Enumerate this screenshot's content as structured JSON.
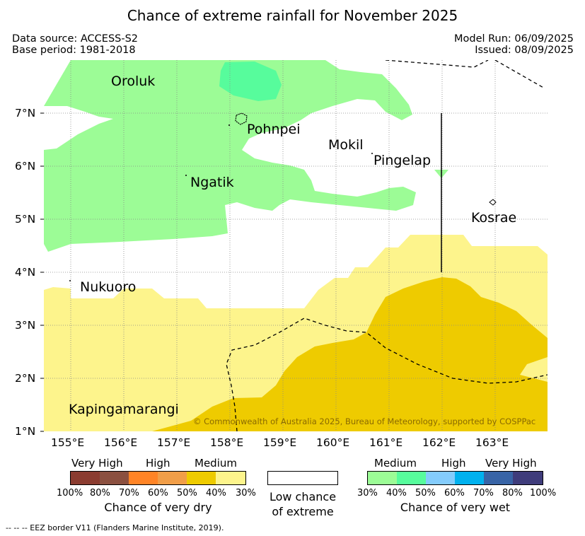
{
  "title": "Chance of extreme rainfall for November 2025",
  "meta": {
    "data_source": "Data source: ACCESS-S2",
    "base_period": "Base period: 1981-2018",
    "model_run": "Model Run: 06/09/2025",
    "issued": "Issued: 08/09/2025"
  },
  "places": [
    {
      "name": "Oroluk"
    },
    {
      "name": "Pohnpei"
    },
    {
      "name": "Mokil"
    },
    {
      "name": "Pingelap"
    },
    {
      "name": "Ngatik"
    },
    {
      "name": "Kosrae"
    },
    {
      "name": "Nukuoro"
    },
    {
      "name": "Kapingamarangi"
    }
  ],
  "axes": {
    "lat_ticks": [
      "1°N",
      "2°N",
      "3°N",
      "4°N",
      "5°N",
      "6°N",
      "7°N"
    ],
    "lon_ticks": [
      "155°E",
      "156°E",
      "157°E",
      "158°E",
      "159°E",
      "160°E",
      "161°E",
      "162°E",
      "163°E"
    ]
  },
  "copyright": "© Commonwealth of Australia 2025, Bureau of Meteorology, supported by COSPPac",
  "legend": {
    "dry": {
      "categories": [
        "Very High",
        "High",
        "Medium"
      ],
      "percents": [
        "100%",
        "80%",
        "70%",
        "60%",
        "50%",
        "40%",
        "30%"
      ],
      "colors": [
        "#8b3c30",
        "#8b5040",
        "#ff8426",
        "#f19e48",
        "#eecb00",
        "#fdf48c"
      ],
      "caption": "Chance of very dry"
    },
    "low": {
      "caption_line1": "Low chance",
      "caption_line2": "of extreme"
    },
    "wet": {
      "categories": [
        "Medium",
        "High",
        "Very High"
      ],
      "percents": [
        "30%",
        "40%",
        "50%",
        "60%",
        "70%",
        "80%",
        "100%"
      ],
      "colors": [
        "#9cfc96",
        "#57fc9c",
        "#84ccfc",
        "#00b1ee",
        "#3864a6",
        "#3f3c7b"
      ],
      "caption": "Chance of very wet"
    }
  },
  "footnote": "--  --  -- EEZ border V11 (Flanders Marine Institute, 2019)."
}
